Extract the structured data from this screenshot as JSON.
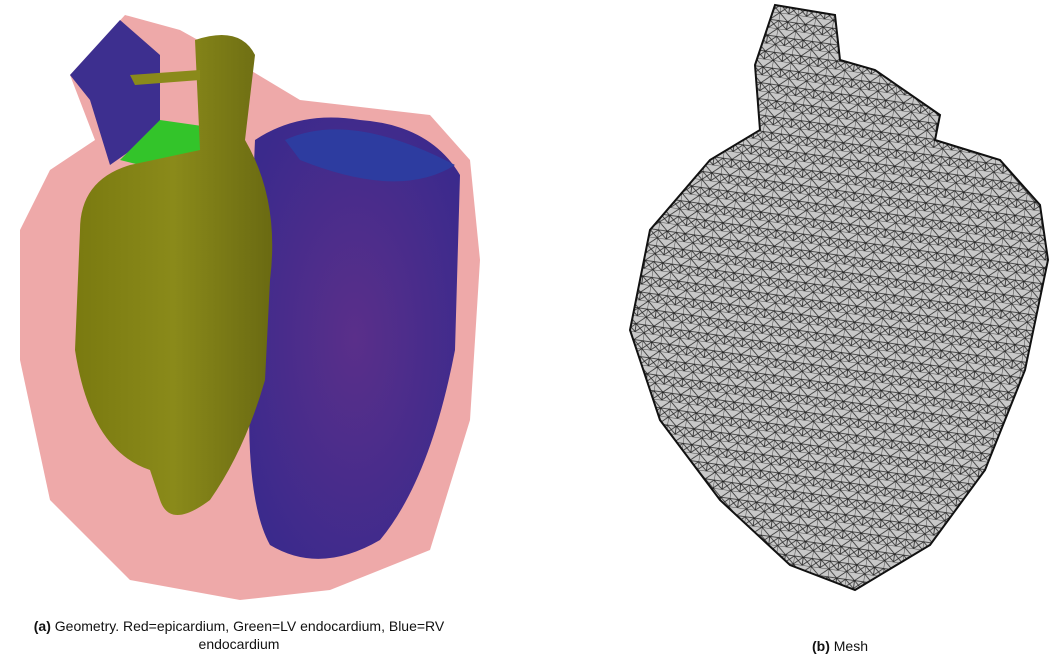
{
  "subfigures": [
    {
      "label": "(a)",
      "caption": "Geometry. Red=epicardium, Green=LV endocardium, Blue=RV endocardium"
    },
    {
      "label": "(b)",
      "caption": "Mesh"
    }
  ]
}
